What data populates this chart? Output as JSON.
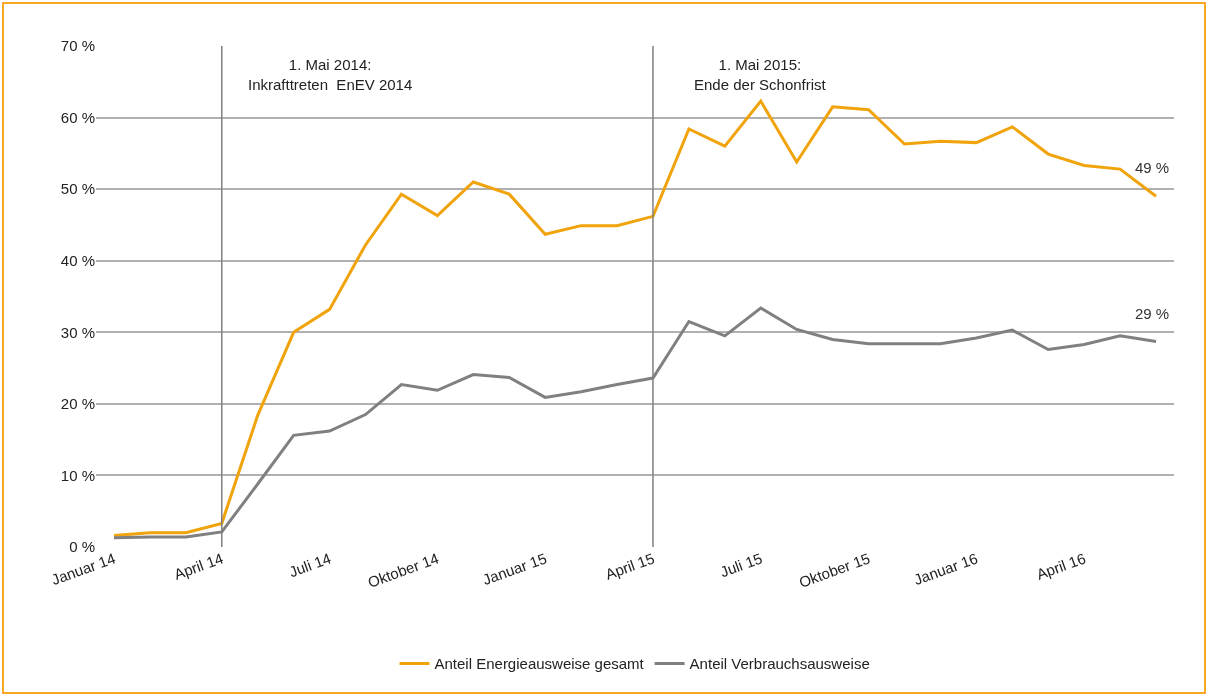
{
  "chart_data": {
    "type": "line",
    "categories": [
      "Januar 14",
      null,
      null,
      "April 14",
      null,
      null,
      "Juli 14",
      null,
      null,
      "Oktober 14",
      null,
      null,
      "Januar 15",
      null,
      null,
      "April 15",
      null,
      null,
      "Juli 15",
      null,
      null,
      "Oktober 15",
      null,
      null,
      "Januar 16",
      null,
      null,
      "April 16",
      null,
      null
    ],
    "series": [
      {
        "name": "Anteil Energieausweise gesamt",
        "color": "#f0a30a",
        "values": [
          1.6,
          2.0,
          2.0,
          3.3,
          18.4,
          30.0,
          33.2,
          42.2,
          49.3,
          46.3,
          51.0,
          49.3,
          43.7,
          44.9,
          44.9,
          46.2,
          58.4,
          56.0,
          62.3,
          53.8,
          61.5,
          61.1,
          56.3,
          56.7,
          56.5,
          58.7,
          54.9,
          53.3,
          52.8,
          49.0
        ],
        "value_labels": [
          null,
          null,
          null,
          null,
          null,
          null,
          null,
          null,
          null,
          null,
          null,
          null,
          null,
          null,
          null,
          null,
          null,
          null,
          null,
          null,
          null,
          null,
          null,
          null,
          null,
          null,
          null,
          null,
          null,
          "49 %"
        ]
      },
      {
        "name": "Anteil Verbrauchsausweise",
        "color": "#808080",
        "values": [
          1.3,
          1.4,
          1.4,
          2.1,
          8.8,
          15.6,
          16.2,
          18.5,
          22.7,
          21.9,
          24.1,
          23.7,
          20.9,
          21.7,
          22.7,
          23.6,
          31.5,
          29.5,
          33.4,
          30.4,
          29.0,
          28.4,
          28.4,
          28.4,
          29.2,
          30.3,
          27.6,
          28.3,
          29.5,
          28.7
        ],
        "value_labels": [
          null,
          null,
          null,
          null,
          null,
          null,
          null,
          null,
          null,
          null,
          null,
          null,
          null,
          null,
          null,
          null,
          null,
          null,
          null,
          null,
          null,
          null,
          null,
          null,
          null,
          null,
          null,
          null,
          null,
          "29 %"
        ]
      }
    ],
    "ylim": [
      0,
      70
    ],
    "yticks": [
      {
        "value": 0,
        "label": "0 %"
      },
      {
        "value": 10,
        "label": "10 %"
      },
      {
        "value": 20,
        "label": "20 %"
      },
      {
        "value": 30,
        "label": "30 %"
      },
      {
        "value": 40,
        "label": "40 %"
      },
      {
        "value": 50,
        "label": "50 %"
      },
      {
        "value": 60,
        "label": "60 %"
      },
      {
        "value": 70,
        "label": "70 %"
      }
    ],
    "ref_lines": [
      {
        "axis": "x",
        "value": "April 14",
        "label": "1. Mai 2014:\nInkrafttreten  EnEV 2014",
        "color": "#7f7f7f"
      },
      {
        "axis": "x",
        "value": "April 15",
        "label": "1. Mai 2015:\nEnde der Schonfrist",
        "color": "#7f7f7f"
      }
    ],
    "grid": "y",
    "legend": "bottom",
    "marker": "none",
    "line_style": "solid"
  }
}
